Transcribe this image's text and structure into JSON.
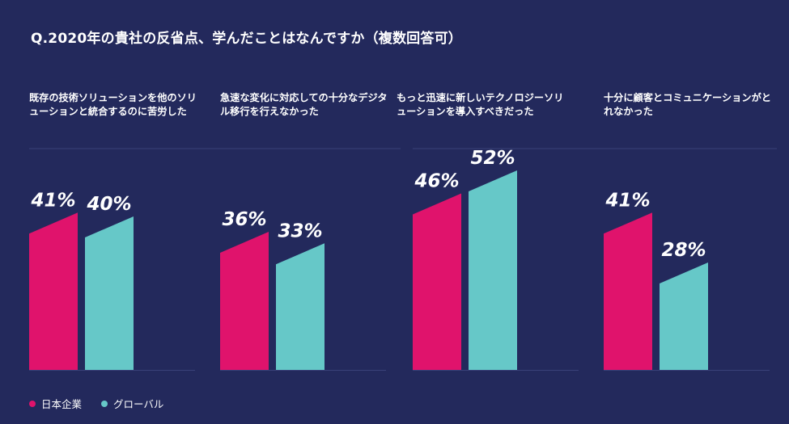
{
  "colors": {
    "background": "#23295c",
    "japan": "#e0136c",
    "global": "#66c8c8",
    "gridline": "#3a4178"
  },
  "chart_data": {
    "type": "bar",
    "title": "Q.2020年の貴社の反省点、学んだことはなんですか（複数回答可）",
    "categories": [
      "既存の技術ソリューションを他のソリューションと統合するのに苦労した",
      "急速な変化に対応しての十分なデジタル移行を行えなかった",
      "もっと迅速に新しいテクノロジーソリューションを導入すべきだった",
      "十分に顧客とコミュニケーションがとれなかった"
    ],
    "series": [
      {
        "name": "日本企業",
        "values": [
          41,
          36,
          46,
          41
        ],
        "labels": [
          "41%",
          "36%",
          "46%",
          "41%"
        ]
      },
      {
        "name": "グローバル",
        "values": [
          40,
          33,
          52,
          28
        ],
        "labels": [
          "40%",
          "33%",
          "52%",
          "28%"
        ]
      }
    ],
    "unit": "%",
    "ylim": [
      0,
      60
    ],
    "grid": false,
    "legend": "bottom-left"
  }
}
